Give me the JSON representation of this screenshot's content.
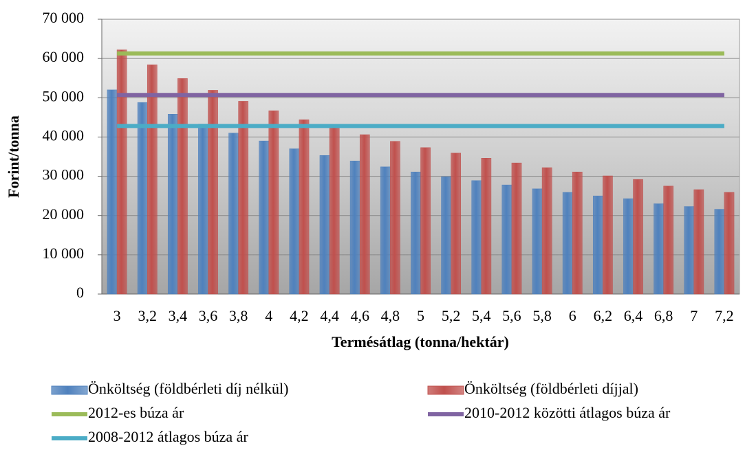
{
  "chart_data": {
    "type": "bar",
    "ylabel": "Forint/tonna",
    "xlabel": "Termésátlag (tonna/hektár)",
    "categories": [
      "3",
      "3,2",
      "3,4",
      "3,6",
      "3,8",
      "4",
      "4,2",
      "4,4",
      "4,6",
      "4,8",
      "5",
      "5,2",
      "5,4",
      "5,6",
      "5,8",
      "6",
      "6,2",
      "6,4",
      "6,8",
      "7",
      "7,2"
    ],
    "series": [
      {
        "name": "Önköltség (földbérleti díj nélkül)",
        "type": "bar",
        "color": "#4f81bd",
        "values": [
          52000,
          48800,
          45800,
          43300,
          41000,
          39000,
          37000,
          35300,
          33900,
          32400,
          31100,
          29900,
          28900,
          27800,
          26800,
          25900,
          25000,
          24300,
          23000,
          22300,
          21600
        ]
      },
      {
        "name": "Önköltség (földbérleti díjjal)",
        "type": "bar",
        "color": "#c0504d",
        "values": [
          62200,
          58400,
          54900,
          51900,
          49100,
          46700,
          44400,
          42400,
          40600,
          38900,
          37300,
          35900,
          34600,
          33400,
          32200,
          31100,
          30100,
          29200,
          27500,
          26600,
          25900
        ]
      },
      {
        "name": "2012-es búza ár",
        "type": "line",
        "color": "#9bbb59",
        "values": [
          61300,
          61300,
          61300,
          61300,
          61300,
          61300,
          61300,
          61300,
          61300,
          61300,
          61300,
          61300,
          61300,
          61300,
          61300,
          61300,
          61300,
          61300,
          61300,
          61300,
          61300
        ]
      },
      {
        "name": "2010-2012 közötti átlagos búza ár",
        "type": "line",
        "color": "#8064a2",
        "values": [
          50700,
          50700,
          50700,
          50700,
          50700,
          50700,
          50700,
          50700,
          50700,
          50700,
          50700,
          50700,
          50700,
          50700,
          50700,
          50700,
          50700,
          50700,
          50700,
          50700,
          50700
        ]
      },
      {
        "name": "2008-2012 átlagos búza ár",
        "type": "line",
        "color": "#4bacc6",
        "values": [
          42800,
          42800,
          42800,
          42800,
          42800,
          42800,
          42800,
          42800,
          42800,
          42800,
          42800,
          42800,
          42800,
          42800,
          42800,
          42800,
          42800,
          42800,
          42800,
          42800,
          42800
        ]
      }
    ],
    "ylim": [
      0,
      70000
    ],
    "yticks": [
      0,
      {
        "value": 10000,
        "label": "10 000"
      },
      {
        "value": 20000,
        "label": "20 000"
      },
      {
        "value": 30000,
        "label": "30 000"
      },
      {
        "value": 40000,
        "label": "40 000"
      },
      {
        "value": 50000,
        "label": "50 000"
      },
      {
        "value": 60000,
        "label": "60 000"
      },
      {
        "value": 70000,
        "label": "70 000"
      }
    ],
    "grid": true,
    "legend": "bottom"
  }
}
